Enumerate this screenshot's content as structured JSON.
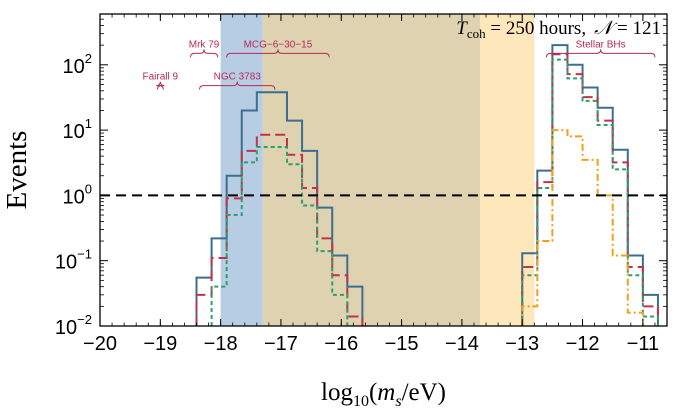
{
  "chart_data": {
    "type": "line",
    "subtype": "step-histogram",
    "title": "T_coh = 250 hours,  N = 121",
    "title_parts": {
      "t": "T",
      "t_sub": "coh",
      "t_rest": " = 250 hours,",
      "n": "𝒩",
      "n_rest": " = 121"
    },
    "xlabel": "log10(ms/eV)",
    "xlabel_parts": {
      "a": "log",
      "sub": "10",
      "b": "(",
      "m": "m",
      "msub": "s",
      "c": "/eV)"
    },
    "ylabel": "Events",
    "xlim": [
      -20,
      -10.6
    ],
    "ylim": [
      0.01,
      600
    ],
    "yscale": "log",
    "x_ticks": [
      -20,
      -19,
      -18,
      -17,
      -16,
      -15,
      -14,
      -13,
      -12,
      -11
    ],
    "x_tick_labels": [
      "−20",
      "−19",
      "−18",
      "−17",
      "−16",
      "−15",
      "−14",
      "−13",
      "−12",
      "−11"
    ],
    "y_ticks": [
      {
        "value": 0.01,
        "base": "10",
        "exp": "−2"
      },
      {
        "value": 0.1,
        "base": "10",
        "exp": "−1"
      },
      {
        "value": 1,
        "base": "10",
        "exp": "0"
      },
      {
        "value": 10,
        "base": "10",
        "exp": "1"
      },
      {
        "value": 100,
        "base": "10",
        "exp": "2"
      }
    ],
    "reference_line": {
      "y": 1,
      "style": "dashed",
      "color": "#000000"
    },
    "shaded_regions": [
      {
        "x": [
          -18.0,
          -17.3
        ],
        "color": "#aac4de"
      },
      {
        "x": [
          -17.3,
          -13.7
        ],
        "color": "#d8caa2"
      },
      {
        "x": [
          -13.7,
          -12.8
        ],
        "color": "#ffe3b0"
      }
    ],
    "bin_width": 0.25,
    "series": [
      {
        "color": "#3c6e8f",
        "dash": "solid",
        "bins": [
          {
            "start": -18.4,
            "values": [
              0.055,
              0.22,
              2.0,
              20,
              38,
              38,
              14,
              4.8,
              0.65,
              0.12,
              0.04
            ]
          },
          {
            "start": -13.0,
            "values": [
              0.13,
              2.4,
              200,
              100,
              45,
              22,
              5,
              0.12,
              0.03
            ]
          }
        ]
      },
      {
        "color": "#c0334a",
        "dash": "long-dash",
        "bins": [
          {
            "start": -18.4,
            "values": [
              0.03,
              0.11,
              0.9,
              4.8,
              8.5,
              8.5,
              4.2,
              1.3,
              0.22,
              0.06,
              0.014
            ]
          },
          {
            "start": -13.0,
            "values": [
              0.08,
              1.6,
              145,
              72,
              32,
              14,
              3.2,
              0.08,
              0.02
            ]
          }
        ]
      },
      {
        "color": "#2e9e6e",
        "dash": "short-dash",
        "bins": [
          {
            "start": -18.15,
            "values": [
              0.04,
              0.5,
              3.2,
              5.5,
              5.5,
              3,
              0.7,
              0.14,
              0.03
            ]
          },
          {
            "start": -13.0,
            "values": [
              0.06,
              1.3,
              120,
              62,
              28,
              12,
              2.5,
              0.06,
              0.014
            ]
          }
        ]
      },
      {
        "color": "#f0a01c",
        "dash": "dash-dot",
        "bins": [
          {
            "start": -13.0,
            "values": [
              0.02,
              0.2,
              10,
              8,
              3.5,
              1.0,
              0.12,
              0.016
            ]
          }
        ]
      }
    ],
    "annotations": [
      {
        "label": "Fairall 9",
        "x_range": [
          -19.05,
          -18.95
        ],
        "text_y": 60,
        "brace_y": 48
      },
      {
        "label": "Mrk 79",
        "x_range": [
          -18.5,
          -18.05
        ],
        "text_y": 185,
        "brace_y": 150
      },
      {
        "label": "NGC 3783",
        "x_range": [
          -18.35,
          -17.1
        ],
        "text_y": 60,
        "brace_y": 48
      },
      {
        "label": "MCG−6−30−15",
        "x_range": [
          -17.9,
          -16.2
        ],
        "text_y": 185,
        "brace_y": 150
      },
      {
        "label": "Stellar BHs",
        "x_range": [
          -12.6,
          -10.8
        ],
        "text_y": 185,
        "brace_y": 150
      }
    ],
    "annotation_color": "#b8285a",
    "grid": false,
    "legend": "none"
  }
}
